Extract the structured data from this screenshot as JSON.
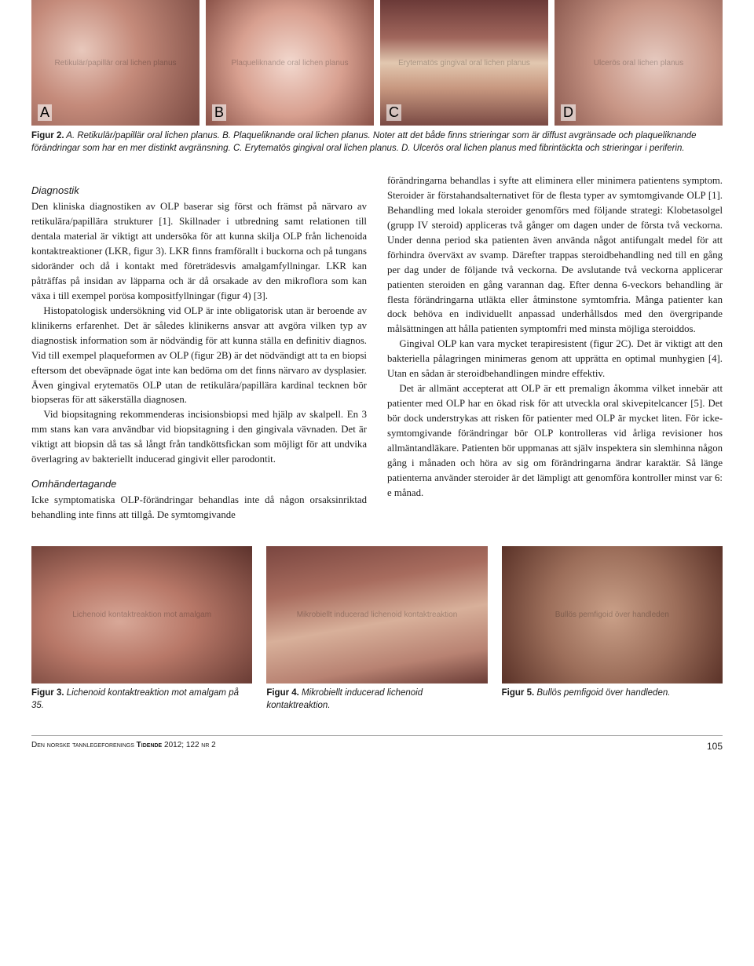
{
  "figure2": {
    "panels": [
      {
        "label": "A",
        "alt": "Retikulär/papillär oral lichen planus",
        "bg": "ph-a"
      },
      {
        "label": "B",
        "alt": "Plaqueliknande oral lichen planus",
        "bg": "ph-b"
      },
      {
        "label": "C",
        "alt": "Erytematös gingival oral lichen planus",
        "bg": "ph-c"
      },
      {
        "label": "D",
        "alt": "Ulcerös oral lichen planus",
        "bg": "ph-d"
      }
    ],
    "caption_lead": "Figur 2.",
    "caption_body": " A. Retikulär/papillär oral lichen planus. B. Plaqueliknande oral lichen planus. Noter att det både finns strieringar som är diffust avgränsade och plaqueliknande förändringar som har en mer distinkt avgränsning. C. Erytematös gingival oral lichen planus. D. Ulcerös oral lichen planus med fibrintäckta och strieringar i periferin."
  },
  "left_col": {
    "h_diag": "Diagnostik",
    "p_d1": "Den kliniska diagnostiken av OLP baserar sig först och främst på närvaro av retikulära/papillära strukturer [1]. Skillnader i utbredning samt relationen till dentala material är viktigt att undersöka för att kunna skilja OLP från lichenoida kontaktreaktioner (LKR, figur 3). LKR finns framförallt i buckorna och på tungans sidoränder och då i kontakt med företrädesvis amalgamfyllningar. LKR kan påträffas på insidan av läpparna och är då orsakade av den mikroflora som kan växa i till exempel porösa kompositfyllningar (figur 4) [3].",
    "p_d2": "Histopatologisk undersökning vid OLP är inte obligatorisk utan är beroende av klinikerns erfarenhet. Det är således klinikerns ansvar att avgöra vilken typ av diagnostisk information som är nödvändig för att kunna ställa en definitiv diagnos. Vid till exempel plaqueformen av OLP (figur 2B) är det nödvändigt att ta en biopsi eftersom det obeväpnade ögat inte kan bedöma om det finns närvaro av dysplasier. Även gingival erytematös OLP utan de retikulära/papillära kardinal tecknen bör biopseras för att säkerställa diagnosen.",
    "p_d3": "Vid biopsitagning rekommenderas incisionsbiopsi med hjälp av skalpell. En 3 mm stans kan vara användbar vid biopsitagning i den gingivala vävnaden. Det är viktigt att biopsin då tas så långt från tandköttsfickan som möjligt för att undvika överlagring av bakteriellt inducerad gingivit eller parodontit.",
    "h_omh": "Omhändertagande",
    "p_o1": "Icke symptomatiska OLP-förändringar behandlas inte då någon orsaksinriktad behandling inte finns att tillgå. De symtomgivande"
  },
  "right_col": {
    "p_r1": "förändringarna behandlas i syfte att eliminera eller minimera patientens symptom. Steroider är förstahandsalternativet för de flesta typer av symtomgivande OLP [1]. Behandling med lokala steroider genomförs med följande strategi: Klobetasolgel (grupp IV steroid) appliceras två gånger om dagen under de första två veckorna. Under denna period ska patienten även använda något antifungalt medel för att förhindra överväxt av svamp. Därefter trappas steroidbehandling ned till en gång per dag under de följande två veckorna. De avslutande två veckorna applicerar patienten steroiden en gång varannan dag. Efter denna 6-veckors behandling är flesta förändringarna utläkta eller åtminstone symtomfria. Många patienter kan dock behöva en individuellt anpassad underhållsdos med den övergripande målsättningen att hålla patienten symptomfri med minsta möjliga steroiddos.",
    "p_r2": "Gingival OLP kan vara mycket terapiresistent (figur 2C). Det är viktigt att den bakteriella pålagringen minimeras genom att upprätta en optimal munhygien [4]. Utan en sådan är steroidbehandlingen mindre effektiv.",
    "p_r3": "Det är allmänt accepterat att OLP är ett premalign åkomma vilket innebär att patienter med OLP har en ökad risk för att utveckla oral skivepitelcancer [5]. Det bör dock understrykas att risken för patienter med OLP är mycket liten. För icke-symtomgivande förändringar bör OLP kontrolleras vid årliga revisioner hos allmäntandläkare. Patienten bör uppmanas att själv inspektera sin slemhinna någon gång i månaden och höra av sig om förändringarna ändrar karaktär. Så länge patienterna använder steroider är det lämpligt att genomföra kontroller minst var 6: e månad."
  },
  "fig3": {
    "lead": "Figur 3.",
    "text": " Lichenoid kontaktreaktion mot amalgam på 35.",
    "alt": "Lichenoid kontaktreaktion mot amalgam",
    "bg": "ph-3"
  },
  "fig4": {
    "lead": "Figur 4.",
    "text": " Mikrobiellt inducerad lichenoid kontaktreaktion.",
    "alt": "Mikrobiellt inducerad lichenoid kontaktreaktion",
    "bg": "ph-4"
  },
  "fig5": {
    "lead": "Figur 5.",
    "text": " Bullös pemfigoid över handleden.",
    "alt": "Bullös pemfigoid över handleden",
    "bg": "ph-5"
  },
  "footer": {
    "journal_pre": "Den norske tannlegeforenings ",
    "journal_bold": "Tidende",
    "journal_post": " 2012; 122 nr 2",
    "page": "105"
  }
}
